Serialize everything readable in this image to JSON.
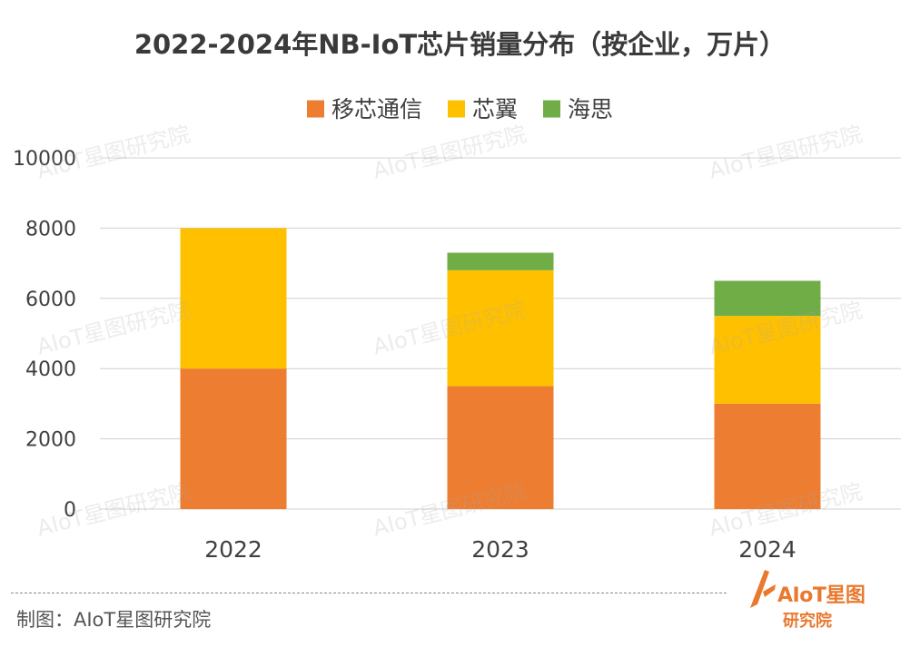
{
  "chart_data": {
    "type": "bar",
    "stacked": true,
    "title": "2022-2024年NB-IoT芯片销量分布（按企业，万片）",
    "categories": [
      "2022",
      "2023",
      "2024"
    ],
    "series": [
      {
        "name": "移芯通信",
        "color": "#ED7D31",
        "values": [
          4000,
          3500,
          3000
        ]
      },
      {
        "name": "芯翼",
        "color": "#FFC000",
        "values": [
          4000,
          3300,
          2500
        ]
      },
      {
        "name": "海思",
        "color": "#70AD47",
        "values": [
          0,
          500,
          1000
        ]
      }
    ],
    "ylim": [
      0,
      10000
    ],
    "yticks": [
      "0",
      "2000",
      "4000",
      "6000",
      "8000",
      "10000"
    ],
    "grid": true,
    "legend_position": "top"
  },
  "watermark": "AIoT星图研究院",
  "credit": "制图：AIoT星图研究院",
  "logo": {
    "text": "AIoT星图",
    "subtext": "研究院",
    "color": "#E9792F"
  }
}
